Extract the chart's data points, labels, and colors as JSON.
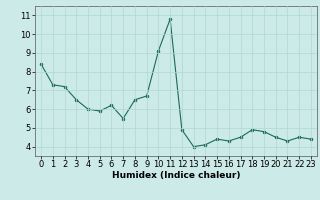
{
  "x": [
    0,
    1,
    2,
    3,
    4,
    5,
    6,
    7,
    8,
    9,
    10,
    11,
    12,
    13,
    14,
    15,
    16,
    17,
    18,
    19,
    20,
    21,
    22,
    23
  ],
  "y": [
    8.4,
    7.3,
    7.2,
    6.5,
    6.0,
    5.9,
    6.2,
    5.5,
    6.5,
    6.7,
    9.1,
    10.8,
    4.9,
    4.0,
    4.1,
    4.4,
    4.3,
    4.5,
    4.9,
    4.8,
    4.5,
    4.3,
    4.5,
    4.4
  ],
  "line_color": "#1a6b5a",
  "marker_color": "#1a6b5a",
  "bg_color": "#cceae7",
  "grid_color": "#b0d8d4",
  "xlabel": "Humidex (Indice chaleur)",
  "ylim": [
    3.5,
    11.5
  ],
  "xlim": [
    -0.5,
    23.5
  ],
  "yticks": [
    4,
    5,
    6,
    7,
    8,
    9,
    10,
    11
  ],
  "xticks": [
    0,
    1,
    2,
    3,
    4,
    5,
    6,
    7,
    8,
    9,
    10,
    11,
    12,
    13,
    14,
    15,
    16,
    17,
    18,
    19,
    20,
    21,
    22,
    23
  ],
  "xlabel_fontsize": 6.5,
  "tick_fontsize": 6.0
}
